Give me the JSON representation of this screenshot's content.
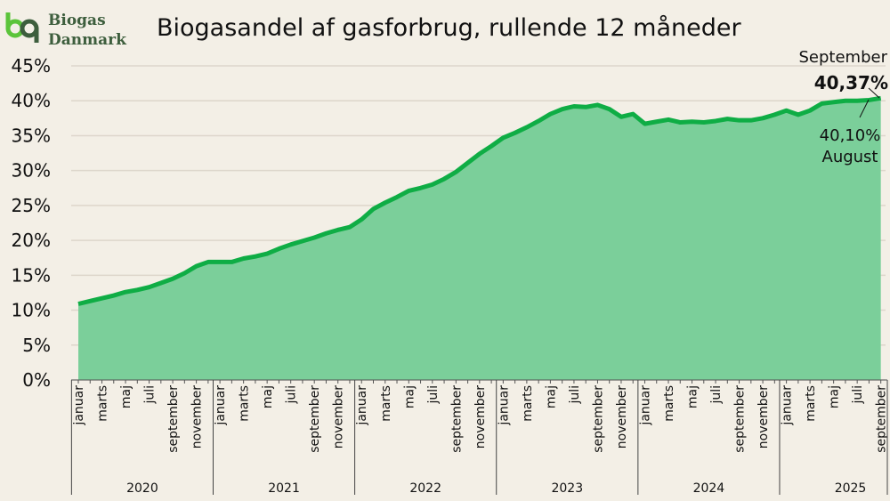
{
  "logo": {
    "line1": "Biogas",
    "line2": "Danmark"
  },
  "chart_data": {
    "type": "area",
    "title": "Biogasandel af gasforbrug, rullende 12 måneder",
    "xlabel": "",
    "ylabel": "",
    "ylim": [
      0,
      45
    ],
    "yticks": [
      "0%",
      "5%",
      "10%",
      "15%",
      "20%",
      "25%",
      "30%",
      "35%",
      "40%",
      "45%"
    ],
    "ytick_values": [
      0,
      5,
      10,
      15,
      20,
      25,
      30,
      35,
      40,
      45
    ],
    "grid": true,
    "line_color": "#0fad45",
    "fill_color": "#7bcf9a",
    "background": "#f3efe6",
    "years": [
      "2020",
      "2021",
      "2022",
      "2023",
      "2024",
      "2025"
    ],
    "month_labels": [
      "januar",
      "",
      "marts",
      "",
      "maj",
      "",
      "juli",
      "",
      "september",
      "",
      "november",
      ""
    ],
    "x_start": "januar 2020",
    "x_end": "september 2025",
    "values": [
      10.9,
      11.3,
      11.7,
      12.1,
      12.6,
      12.9,
      13.3,
      13.9,
      14.5,
      15.3,
      16.3,
      16.9,
      16.9,
      16.9,
      17.4,
      17.7,
      18.1,
      18.8,
      19.4,
      19.9,
      20.4,
      21.0,
      21.5,
      21.9,
      23.0,
      24.5,
      25.4,
      26.2,
      27.1,
      27.5,
      28.0,
      28.8,
      29.8,
      31.1,
      32.4,
      33.5,
      34.7,
      35.4,
      36.2,
      37.1,
      38.1,
      38.8,
      39.2,
      39.1,
      39.4,
      38.8,
      37.7,
      38.1,
      36.7,
      37.0,
      37.3,
      36.9,
      37.0,
      36.9,
      37.1,
      37.4,
      37.2,
      37.2,
      37.5,
      38.0,
      38.6,
      38.0,
      38.6,
      39.6,
      39.8,
      40.0,
      40.0,
      40.1,
      40.37
    ],
    "annotations": {
      "last_month": "September",
      "last_value": "40,37%",
      "prev_value": "40,10%",
      "prev_month": "August"
    }
  }
}
